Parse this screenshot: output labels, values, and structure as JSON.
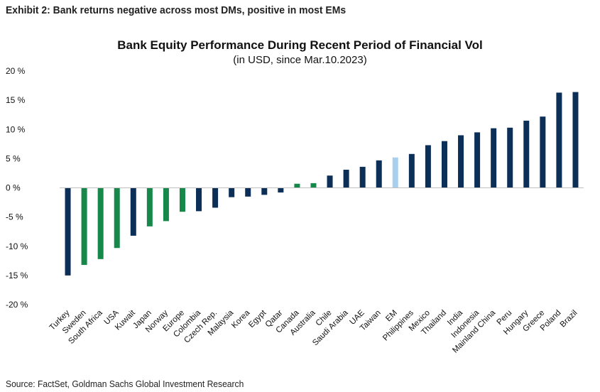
{
  "exhibit_title": "Exhibit 2: Bank returns negative across most DMs, positive in most EMs",
  "source": "Source: FactSet, Goldman Sachs Global Investment Research",
  "colors": {
    "default_bar": "#0c2f57",
    "highlight_green": "#16884a",
    "highlight_em": "#a9cfee",
    "axis": "#bfbfbf"
  },
  "chart_data": {
    "type": "bar",
    "title": "Bank Equity Performance During Recent Period of Financial Vol",
    "subtitle": "(in USD, since Mar.10.2023)",
    "ylim": [
      -20,
      20
    ],
    "yticks": [
      20,
      15,
      10,
      5,
      0,
      -5,
      -10,
      -15,
      -20
    ],
    "ytick_labels": [
      "20 %",
      "15 %",
      "10 %",
      "5 %",
      "0 %",
      "-5 %",
      "-10 %",
      "-15 %",
      "-20 %"
    ],
    "grid": false,
    "legend": "none",
    "categories": [
      "Turkey",
      "Sweden",
      "South Africa",
      "USA",
      "Kuwait",
      "Japan",
      "Norway",
      "Europe",
      "Colombia",
      "Czech Rep.",
      "Malaysia",
      "Korea",
      "Egypt",
      "Qatar",
      "Canada",
      "Australia",
      "Chile",
      "Saudi Arabia",
      "UAE",
      "Taiwan",
      "EM",
      "Philippines",
      "Mexico",
      "Thailand",
      "India",
      "Indonesia",
      "Mainland China",
      "Peru",
      "Hungary",
      "Greece",
      "Poland",
      "Brazil"
    ],
    "values": [
      -15.0,
      -13.2,
      -12.2,
      -10.3,
      -8.2,
      -6.6,
      -5.7,
      -4.1,
      -4.0,
      -3.4,
      -1.6,
      -1.5,
      -1.2,
      -0.8,
      0.7,
      0.8,
      2.1,
      3.1,
      3.6,
      4.7,
      5.2,
      5.8,
      7.3,
      8.0,
      9.0,
      9.5,
      10.2,
      10.3,
      11.5,
      12.2,
      16.3,
      16.4
    ],
    "bar_colors": [
      "default",
      "green",
      "green",
      "green",
      "default",
      "green",
      "green",
      "green",
      "default",
      "default",
      "default",
      "default",
      "default",
      "default",
      "green",
      "green",
      "default",
      "default",
      "default",
      "default",
      "em",
      "default",
      "default",
      "default",
      "default",
      "default",
      "default",
      "default",
      "default",
      "default",
      "default",
      "default"
    ]
  }
}
